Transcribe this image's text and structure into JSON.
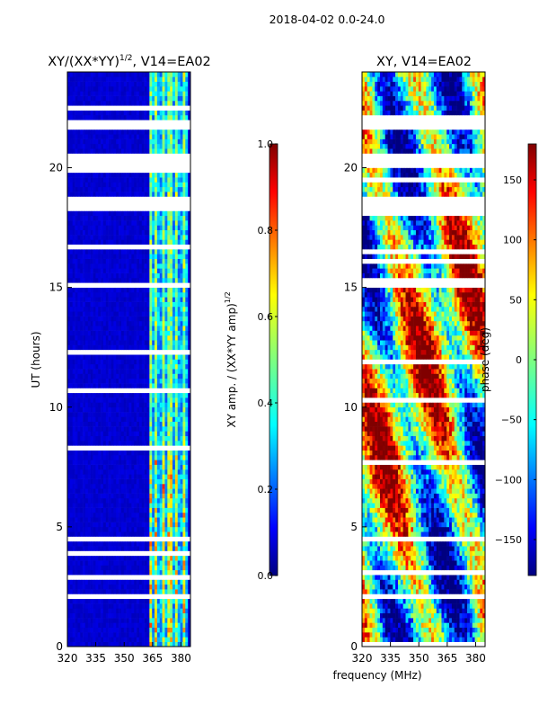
{
  "figure_title": "2018-04-02 0.0-24.0",
  "colors": {
    "jet": [
      "#00007f",
      "#0000ff",
      "#007fff",
      "#00ffff",
      "#7fff7f",
      "#ffff00",
      "#ff7f00",
      "#ff0000",
      "#7f0000"
    ],
    "gap": "#ffffff",
    "axis": "#000000"
  },
  "chart_data": [
    {
      "type": "heatmap",
      "title_main": "XY/(XX*YY)",
      "title_sup": "1/2",
      "title_tail": ", V14=EA02",
      "ylabel": "UT (hours)",
      "xlabel": "",
      "xlim": [
        320,
        385
      ],
      "ylim": [
        0,
        24
      ],
      "xticks": [
        320,
        335,
        350,
        365,
        380
      ],
      "yticks": [
        0,
        5,
        10,
        15,
        20
      ],
      "colorbar": {
        "label": "XY amp. / (XX*YY amp)",
        "label_sup": "1/2",
        "range": [
          0.0,
          1.0
        ],
        "ticks": [
          0.0,
          0.2,
          0.4,
          0.6,
          0.8,
          1.0
        ],
        "tick_labels": [
          "0.0",
          "0.2",
          "0.4",
          "0.6",
          "0.8",
          "1.0"
        ]
      },
      "gaps_hours": [
        [
          20.0,
          20.5
        ],
        [
          18.2,
          18.8
        ],
        [
          21.6,
          22.0
        ],
        [
          15.0,
          15.1
        ],
        [
          4.4,
          4.55
        ],
        [
          1.1,
          1.2
        ],
        [
          7.6,
          7.7
        ]
      ],
      "notes": "Low amplitude (~0.05) over 320-363 MHz; bright channel strips (0.3-0.75) between ~363 and 383 MHz, strongest near 365-380 MHz during 0-8 UT."
    },
    {
      "type": "heatmap",
      "title": "XY, V14=EA02",
      "ylabel": "",
      "xlabel": "frequency (MHz)",
      "xlim": [
        320,
        385
      ],
      "ylim": [
        0,
        24
      ],
      "xticks": [
        320,
        335,
        350,
        365,
        380
      ],
      "yticks": [
        0,
        5,
        10,
        15,
        20
      ],
      "colorbar": {
        "label": "phase (deg)",
        "range": [
          -180,
          180
        ],
        "ticks": [
          -150,
          -100,
          -50,
          0,
          50,
          100,
          150
        ],
        "tick_labels": [
          "−150",
          "−100",
          "−50",
          "0",
          "50",
          "100",
          "150"
        ]
      },
      "gaps_hours": [
        [
          20.0,
          20.5
        ],
        [
          18.2,
          18.8
        ],
        [
          21.6,
          22.0
        ],
        [
          15.0,
          15.1
        ],
        [
          4.4,
          4.55
        ],
        [
          1.1,
          1.2
        ],
        [
          7.6,
          7.7
        ]
      ],
      "notes": "Phase wraps across the band with noisy structure; many horizontal flagged rows."
    }
  ]
}
